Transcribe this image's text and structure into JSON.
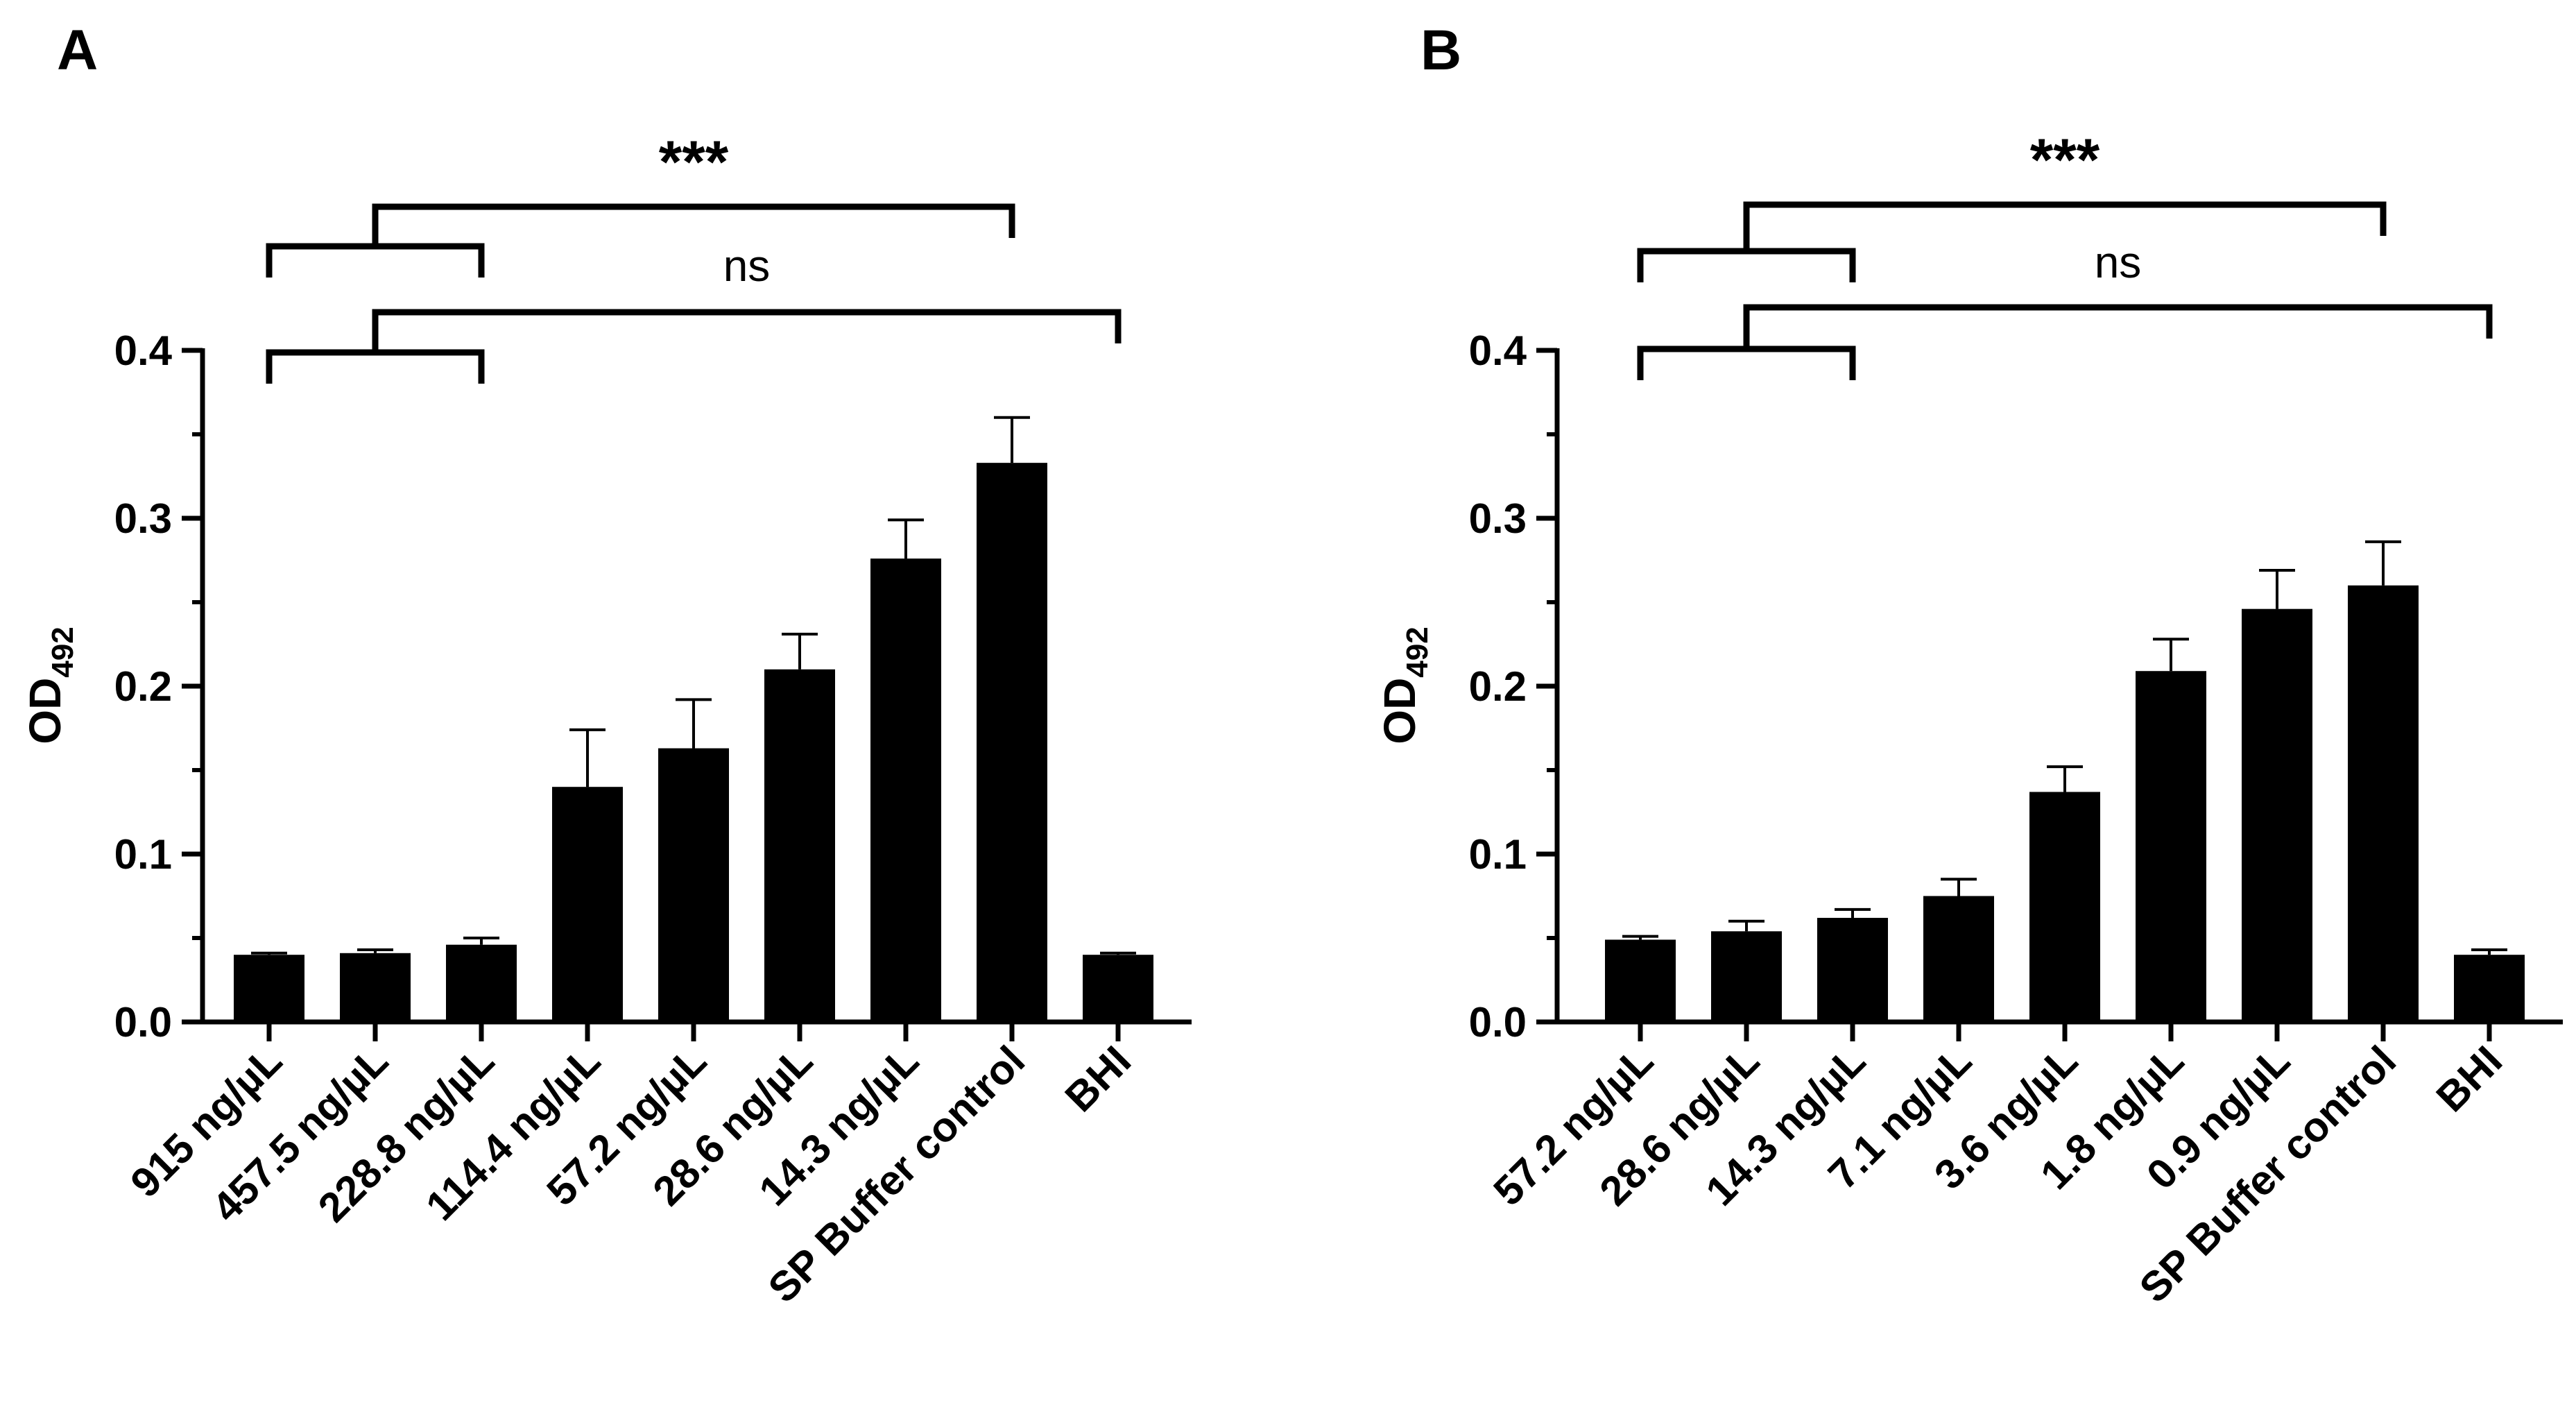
{
  "chart_data": [
    {
      "panel": "A",
      "type": "bar",
      "ylabel_main": "OD",
      "ylabel_sub": "492",
      "xlabel": "",
      "ylim": [
        0,
        0.4
      ],
      "yticks": [
        "0.0",
        "0.1",
        "0.2",
        "0.3",
        "0.4"
      ],
      "categories": [
        "915 ng/µL",
        "457.5 ng/µL",
        "228.8 ng/µL",
        "114.4 ng/µL",
        "57.2 ng/µL",
        "28.6 ng/µL",
        "14.3 ng/µL",
        "SP Buffer control",
        "BHI"
      ],
      "values": [
        0.04,
        0.041,
        0.046,
        0.14,
        0.163,
        0.21,
        0.276,
        0.333,
        0.04
      ],
      "errors": [
        0.001,
        0.002,
        0.004,
        0.034,
        0.029,
        0.021,
        0.023,
        0.027,
        0.001
      ],
      "significance": [
        {
          "label": "***",
          "group": [
            0,
            2
          ],
          "vs": 7
        },
        {
          "label": "ns",
          "group": [
            0,
            2
          ],
          "vs": 8
        }
      ]
    },
    {
      "panel": "B",
      "type": "bar",
      "ylabel_main": "OD",
      "ylabel_sub": "492",
      "xlabel": "",
      "ylim": [
        0,
        0.4
      ],
      "yticks": [
        "0.0",
        "0.1",
        "0.2",
        "0.3",
        "0.4"
      ],
      "categories": [
        "57.2 ng/µL",
        "28.6 ng/µL",
        "14.3 ng/µL",
        "7.1 ng/µL",
        "3.6 ng/µL",
        "1.8 ng/µL",
        "0.9 ng/µL",
        "SP Buffer control",
        "BHI"
      ],
      "values": [
        0.049,
        0.054,
        0.062,
        0.075,
        0.137,
        0.209,
        0.246,
        0.26,
        0.04
      ],
      "errors": [
        0.002,
        0.006,
        0.005,
        0.01,
        0.015,
        0.019,
        0.023,
        0.026,
        0.003
      ],
      "significance": [
        {
          "label": "***",
          "group": [
            0,
            2
          ],
          "vs": 7
        },
        {
          "label": "ns",
          "group": [
            0,
            2
          ],
          "vs": 8
        }
      ]
    }
  ]
}
